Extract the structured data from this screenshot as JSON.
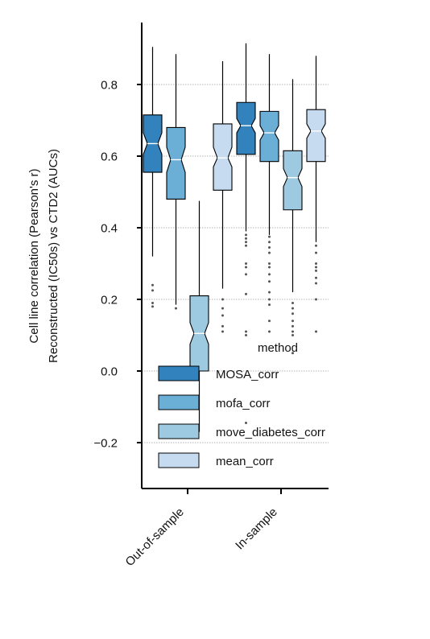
{
  "chart_data": {
    "type": "boxplot",
    "ylabel_line1": "Cell line correlation (Pearson's r)",
    "ylabel_line2": "Reconstructed (IC50s) vs CTD2 (AUCs)",
    "categories": [
      "Out-of-sample",
      "In-sample"
    ],
    "ylim": [
      -0.33,
      0.97
    ],
    "yticks": [
      -0.2,
      0.0,
      0.2,
      0.4,
      0.6,
      0.8
    ],
    "ytick_labels": [
      "−0.2",
      "0.0",
      "0.2",
      "0.4",
      "0.6",
      "0.8"
    ],
    "grid": true,
    "legend_title": "method",
    "legend_position": "lower-right",
    "series": [
      {
        "name": "MOSA_corr",
        "color": "#3182bd",
        "boxes": [
          {
            "whislo": 0.32,
            "q1": 0.555,
            "med": 0.635,
            "q3": 0.715,
            "whishi": 0.905,
            "notch": [
              0.605,
              0.665
            ],
            "fliers": [
              0.24,
              0.225,
              0.19,
              0.18
            ]
          },
          {
            "whislo": 0.39,
            "q1": 0.605,
            "med": 0.685,
            "q3": 0.75,
            "whishi": 0.915,
            "notch": [
              0.665,
              0.705
            ],
            "fliers": [
              0.38,
              0.37,
              0.36,
              0.35,
              0.3,
              0.29,
              0.27,
              0.215,
              0.11,
              0.1,
              -0.145
            ]
          }
        ]
      },
      {
        "name": "mofa_corr",
        "color": "#6baed6",
        "boxes": [
          {
            "whislo": 0.185,
            "q1": 0.48,
            "med": 0.59,
            "q3": 0.68,
            "whishi": 0.885,
            "notch": [
              0.555,
              0.625
            ],
            "fliers": [
              0.175
            ]
          },
          {
            "whislo": 0.38,
            "q1": 0.585,
            "med": 0.665,
            "q3": 0.725,
            "whishi": 0.885,
            "notch": [
              0.645,
              0.685
            ],
            "fliers": [
              0.375,
              0.36,
              0.345,
              0.33,
              0.3,
              0.29,
              0.27,
              0.25,
              0.22,
              0.2,
              0.185,
              0.14,
              0.11
            ]
          }
        ]
      },
      {
        "name": "move_diabetes_corr",
        "color": "#9ecae1",
        "boxes": [
          {
            "whislo": -0.17,
            "q1": 0.0,
            "med": 0.105,
            "q3": 0.21,
            "whishi": 0.475,
            "notch": [
              0.075,
              0.135
            ],
            "fliers": []
          },
          {
            "whislo": 0.22,
            "q1": 0.45,
            "med": 0.54,
            "q3": 0.615,
            "whishi": 0.815,
            "notch": [
              0.515,
              0.565
            ],
            "fliers": [
              0.19,
              0.175,
              0.16,
              0.14,
              0.125,
              0.11,
              0.1,
              0.05
            ]
          }
        ]
      },
      {
        "name": "mean_corr",
        "color": "#c6dbef",
        "boxes": [
          {
            "whislo": 0.23,
            "q1": 0.505,
            "med": 0.595,
            "q3": 0.69,
            "whishi": 0.865,
            "notch": [
              0.57,
              0.625
            ],
            "fliers": [
              0.2,
              0.175,
              0.155,
              0.125,
              0.11
            ]
          },
          {
            "whislo": 0.36,
            "q1": 0.585,
            "med": 0.67,
            "q3": 0.73,
            "whishi": 0.88,
            "notch": [
              0.65,
              0.69
            ],
            "fliers": [
              0.35,
              0.33,
              0.3,
              0.29,
              0.28,
              0.26,
              0.245,
              0.2,
              0.11
            ]
          }
        ]
      }
    ]
  }
}
